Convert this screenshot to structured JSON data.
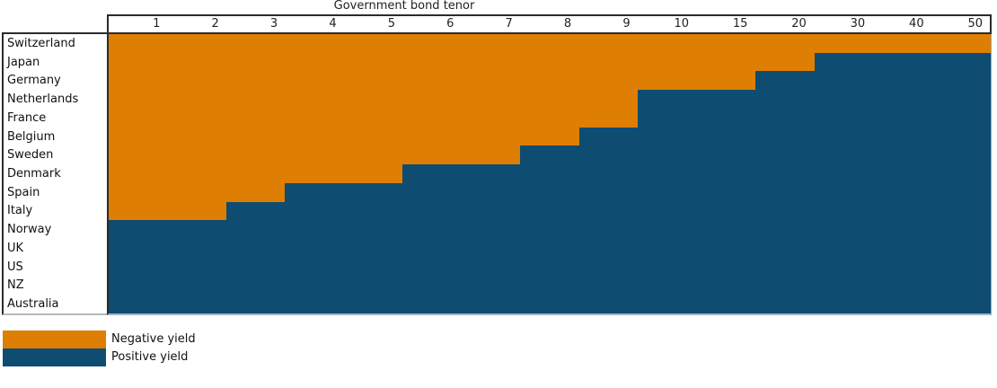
{
  "title": "Government bond tenor",
  "colors": {
    "negative": "#DE7E03",
    "positive": "#0E4C72",
    "border_dark": "#2b2b2b",
    "border_light": "#9fb7c7"
  },
  "legend": [
    {
      "name": "negative-yield",
      "label": "Negative yield",
      "color": "#DE7E03"
    },
    {
      "name": "positive-yield",
      "label": "Positive yield",
      "color": "#0E4C72"
    }
  ],
  "chart_data": {
    "type": "heatmap",
    "title": "Government bond tenor",
    "x_axis_label": "Government bond tenor",
    "tenors": [
      1,
      2,
      3,
      4,
      5,
      6,
      7,
      8,
      9,
      10,
      15,
      20,
      30,
      40,
      50
    ],
    "value_legend": {
      "negative": "Negative yield",
      "positive": "Positive yield"
    },
    "rows": [
      {
        "country": "Switzerland",
        "negative_through": 50
      },
      {
        "country": "Japan",
        "negative_through": 20
      },
      {
        "country": "Germany",
        "negative_through": 15
      },
      {
        "country": "Netherlands",
        "negative_through": 9
      },
      {
        "country": "France",
        "negative_through": 9
      },
      {
        "country": "Belgium",
        "negative_through": 8
      },
      {
        "country": "Sweden",
        "negative_through": 7
      },
      {
        "country": "Denmark",
        "negative_through": 5
      },
      {
        "country": "Spain",
        "negative_through": 3
      },
      {
        "country": "Italy",
        "negative_through": 2
      },
      {
        "country": "Norway",
        "negative_through": 0
      },
      {
        "country": "UK",
        "negative_through": 0
      },
      {
        "country": "US",
        "negative_through": 0
      },
      {
        "country": "NZ",
        "negative_through": 0
      },
      {
        "country": "Australia",
        "negative_through": 0
      }
    ],
    "layout": {
      "grid": false,
      "legend_position": "bottom-left"
    }
  }
}
